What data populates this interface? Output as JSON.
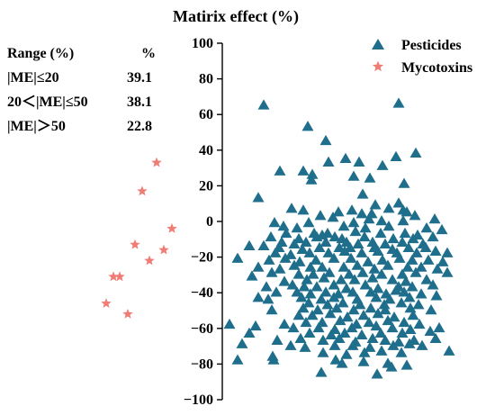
{
  "chart_data": {
    "type": "scatter",
    "title": "Matirix effect (%)",
    "xlabel": "",
    "ylabel": "",
    "ylim": [
      -100,
      100
    ],
    "yticks": [
      100,
      80,
      60,
      40,
      20,
      0,
      -20,
      -40,
      -60,
      -80,
      -100
    ],
    "grid": false,
    "legend_position": "top-right",
    "table": {
      "headers": [
        "Range (%)",
        "%"
      ],
      "rows": [
        [
          "|ME|≤20",
          "39.1"
        ],
        [
          "20＜|ME|≤50",
          "38.1"
        ],
        [
          "|ME|＞50",
          "22.8"
        ]
      ]
    },
    "series": [
      {
        "name": "Pesticides",
        "color": "#1f6e8c",
        "marker": "triangle",
        "points": [
          [
            293,
            65
          ],
          [
            443,
            66
          ],
          [
            342,
            53
          ],
          [
            362,
            45
          ],
          [
            384,
            35
          ],
          [
            365,
            33
          ],
          [
            462,
            38
          ],
          [
            440,
            36
          ],
          [
            399,
            33
          ],
          [
            425,
            31
          ],
          [
            311,
            28
          ],
          [
            337,
            28
          ],
          [
            347,
            26
          ],
          [
            393,
            25
          ],
          [
            411,
            24
          ],
          [
            346,
            23
          ],
          [
            449,
            21
          ],
          [
            287,
            13
          ],
          [
            403,
            15
          ],
          [
            443,
            10
          ],
          [
            324,
            7
          ],
          [
            417,
            9
          ],
          [
            432,
            7
          ],
          [
            337,
            6
          ],
          [
            391,
            6
          ],
          [
            448,
            6
          ],
          [
            376,
            5
          ],
          [
            402,
            4
          ],
          [
            413,
            4
          ],
          [
            452,
            5
          ],
          [
            356,
            3
          ],
          [
            370,
            2
          ],
          [
            410,
            1
          ],
          [
            424,
            0
          ],
          [
            461,
            3
          ],
          [
            305,
            -1
          ],
          [
            343,
            -1
          ],
          [
            393,
            -1
          ],
          [
            448,
            0
          ],
          [
            483,
            1
          ],
          [
            315,
            -3
          ],
          [
            330,
            -4
          ],
          [
            382,
            -3
          ],
          [
            406,
            -4
          ],
          [
            432,
            -3
          ],
          [
            474,
            -4
          ],
          [
            491,
            -5
          ],
          [
            318,
            -7
          ],
          [
            349,
            -7
          ],
          [
            364,
            -7
          ],
          [
            395,
            -6
          ],
          [
            423,
            -7
          ],
          [
            450,
            -7
          ],
          [
            464,
            -8
          ],
          [
            301,
            -9
          ],
          [
            332,
            -10
          ],
          [
            352,
            -9
          ],
          [
            358,
            -8
          ],
          [
            372,
            -9
          ],
          [
            380,
            -10
          ],
          [
            405,
            -9
          ],
          [
            437,
            -10
          ],
          [
            459,
            -10
          ],
          [
            481,
            -9
          ],
          [
            313,
            -12
          ],
          [
            327,
            -13
          ],
          [
            340,
            -12
          ],
          [
            362,
            -12
          ],
          [
            385,
            -12
          ],
          [
            398,
            -13
          ],
          [
            414,
            -12
          ],
          [
            428,
            -13
          ],
          [
            447,
            -12
          ],
          [
            470,
            -13
          ],
          [
            293,
            -14
          ],
          [
            310,
            -15
          ],
          [
            336,
            -16
          ],
          [
            355,
            -15
          ],
          [
            377,
            -15
          ],
          [
            389,
            -15
          ],
          [
            416,
            -15
          ],
          [
            436,
            -16
          ],
          [
            454,
            -15
          ],
          [
            473,
            -15
          ],
          [
            277,
            -14
          ],
          [
            264,
            -21
          ],
          [
            306,
            -18
          ],
          [
            323,
            -19
          ],
          [
            344,
            -18
          ],
          [
            365,
            -18
          ],
          [
            383,
            -17
          ],
          [
            402,
            -18
          ],
          [
            420,
            -17
          ],
          [
            441,
            -18
          ],
          [
            463,
            -18
          ],
          [
            484,
            -17
          ],
          [
            497,
            -18
          ],
          [
            299,
            -22
          ],
          [
            317,
            -21
          ],
          [
            333,
            -23
          ],
          [
            351,
            -22
          ],
          [
            371,
            -21
          ],
          [
            390,
            -21
          ],
          [
            409,
            -23
          ],
          [
            425,
            -22
          ],
          [
            444,
            -21
          ],
          [
            458,
            -22
          ],
          [
            476,
            -22
          ],
          [
            492,
            -23
          ],
          [
            287,
            -26
          ],
          [
            311,
            -27
          ],
          [
            327,
            -25
          ],
          [
            345,
            -26
          ],
          [
            358,
            -26
          ],
          [
            382,
            -26
          ],
          [
            397,
            -25
          ],
          [
            416,
            -27
          ],
          [
            431,
            -25
          ],
          [
            453,
            -26
          ],
          [
            468,
            -26
          ],
          [
            486,
            -27
          ],
          [
            302,
            -29
          ],
          [
            332,
            -30
          ],
          [
            348,
            -30
          ],
          [
            366,
            -29
          ],
          [
            388,
            -30
          ],
          [
            403,
            -29
          ],
          [
            424,
            -30
          ],
          [
            447,
            -30
          ],
          [
            462,
            -29
          ],
          [
            497,
            -29
          ],
          [
            280,
            -31
          ],
          [
            316,
            -34
          ],
          [
            341,
            -33
          ],
          [
            360,
            -32
          ],
          [
            379,
            -33
          ],
          [
            394,
            -33
          ],
          [
            414,
            -32
          ],
          [
            436,
            -33
          ],
          [
            451,
            -34
          ],
          [
            474,
            -33
          ],
          [
            296,
            -37
          ],
          [
            325,
            -36
          ],
          [
            338,
            -37
          ],
          [
            352,
            -37
          ],
          [
            371,
            -36
          ],
          [
            385,
            -38
          ],
          [
            406,
            -36
          ],
          [
            420,
            -38
          ],
          [
            443,
            -37
          ],
          [
            458,
            -37
          ],
          [
            481,
            -36
          ],
          [
            307,
            -40
          ],
          [
            330,
            -40
          ],
          [
            345,
            -41
          ],
          [
            362,
            -40
          ],
          [
            376,
            -41
          ],
          [
            392,
            -40
          ],
          [
            412,
            -40
          ],
          [
            429,
            -41
          ],
          [
            440,
            -39
          ],
          [
            449,
            -40
          ],
          [
            468,
            -41
          ],
          [
            287,
            -43
          ],
          [
            298,
            -44
          ],
          [
            335,
            -43
          ],
          [
            357,
            -44
          ],
          [
            371,
            -43
          ],
          [
            397,
            -44
          ],
          [
            418,
            -43
          ],
          [
            433,
            -44
          ],
          [
            455,
            -43
          ],
          [
            485,
            -42
          ],
          [
            343,
            -46
          ],
          [
            364,
            -47
          ],
          [
            381,
            -46
          ],
          [
            400,
            -47
          ],
          [
            427,
            -47
          ],
          [
            446,
            -46
          ],
          [
            465,
            -47
          ],
          [
            302,
            -50
          ],
          [
            337,
            -49
          ],
          [
            353,
            -50
          ],
          [
            374,
            -49
          ],
          [
            393,
            -50
          ],
          [
            412,
            -49
          ],
          [
            428,
            -50
          ],
          [
            456,
            -49
          ],
          [
            479,
            -50
          ],
          [
            332,
            -53
          ],
          [
            347,
            -53
          ],
          [
            367,
            -52
          ],
          [
            386,
            -54
          ],
          [
            404,
            -53
          ],
          [
            420,
            -52
          ],
          [
            438,
            -54
          ],
          [
            459,
            -53
          ],
          [
            316,
            -58
          ],
          [
            340,
            -57
          ],
          [
            358,
            -57
          ],
          [
            378,
            -56
          ],
          [
            396,
            -58
          ],
          [
            410,
            -57
          ],
          [
            431,
            -56
          ],
          [
            449,
            -57
          ],
          [
            466,
            -58
          ],
          [
            284,
            -59
          ],
          [
            255,
            -58
          ],
          [
            326,
            -60
          ],
          [
            354,
            -60
          ],
          [
            372,
            -61
          ],
          [
            391,
            -60
          ],
          [
            418,
            -59
          ],
          [
            436,
            -60
          ],
          [
            456,
            -61
          ],
          [
            488,
            -60
          ],
          [
            277,
            -63
          ],
          [
            344,
            -63
          ],
          [
            368,
            -64
          ],
          [
            383,
            -63
          ],
          [
            402,
            -64
          ],
          [
            423,
            -63
          ],
          [
            447,
            -63
          ],
          [
            478,
            -62
          ],
          [
            308,
            -67
          ],
          [
            334,
            -66
          ],
          [
            359,
            -67
          ],
          [
            377,
            -66
          ],
          [
            395,
            -68
          ],
          [
            414,
            -66
          ],
          [
            428,
            -67
          ],
          [
            443,
            -68
          ],
          [
            460,
            -67
          ],
          [
            484,
            -66
          ],
          [
            269,
            -69
          ],
          [
            323,
            -70
          ],
          [
            339,
            -71
          ],
          [
            372,
            -70
          ],
          [
            392,
            -70
          ],
          [
            411,
            -71
          ],
          [
            437,
            -70
          ],
          [
            455,
            -69
          ],
          [
            469,
            -70
          ],
          [
            359,
            -74
          ],
          [
            385,
            -75
          ],
          [
            405,
            -74
          ],
          [
            424,
            -73
          ],
          [
            446,
            -74
          ],
          [
            499,
            -73
          ],
          [
            303,
            -76
          ],
          [
            264,
            -78
          ],
          [
            304,
            -78
          ],
          [
            373,
            -78
          ],
          [
            380,
            -80
          ],
          [
            404,
            -79
          ],
          [
            431,
            -80
          ],
          [
            452,
            -81
          ],
          [
            435,
            -82
          ],
          [
            357,
            -85
          ],
          [
            419,
            -86
          ]
        ]
      },
      {
        "name": "Mycotoxins",
        "color": "#f07c74",
        "marker": "star",
        "points": [
          [
            174,
            33
          ],
          [
            158,
            17
          ],
          [
            191,
            -4
          ],
          [
            150,
            -13
          ],
          [
            182,
            -16
          ],
          [
            166,
            -22
          ],
          [
            126,
            -31
          ],
          [
            133,
            -31
          ],
          [
            118,
            -46
          ],
          [
            142,
            -52
          ]
        ]
      }
    ]
  }
}
